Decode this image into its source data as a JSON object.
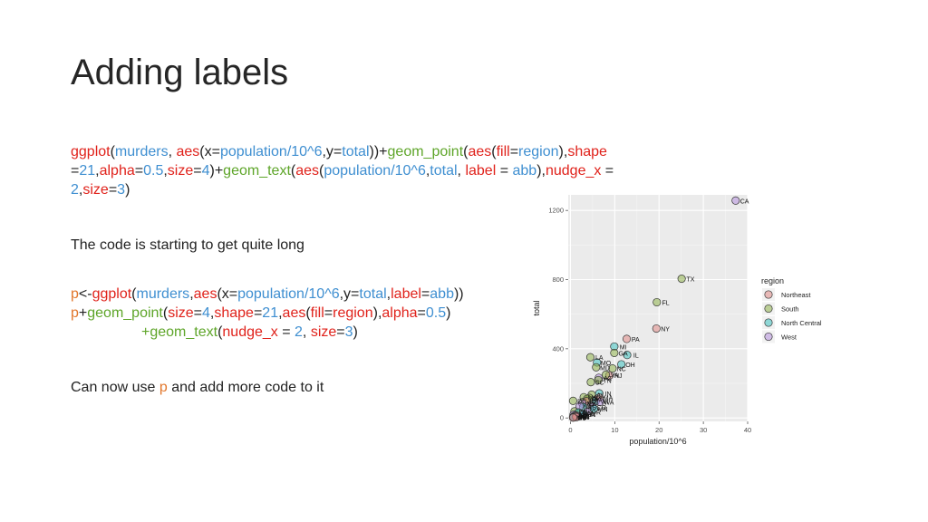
{
  "title": "Adding labels",
  "code_block1": {
    "line1": [
      "ggplot",
      "(",
      "murders",
      ", ",
      "aes",
      "(x=",
      "population/10^6",
      ",y=",
      "total",
      "))+",
      "geom_point",
      "(",
      "aes",
      "(",
      "fill",
      "=",
      "region",
      "),",
      "shape"
    ],
    "line2": [
      "=",
      "21",
      ",",
      "alpha",
      "=",
      "0.5",
      ",",
      "size",
      "=",
      "4",
      ")+",
      "geom_text",
      "(",
      "aes",
      "(",
      "population/10^6",
      ",",
      "total",
      ", ",
      "label",
      " = ",
      "abb",
      "),",
      "nudge_x",
      " ="
    ],
    "line3": [
      "2",
      ",",
      "size",
      "=",
      "3",
      ")"
    ]
  },
  "note1": "The code is starting to get quite long",
  "code_block2": {
    "line1": [
      "p",
      "<-",
      "ggplot",
      "(",
      "murders",
      ",",
      "aes",
      "(x=",
      "population/10^6",
      ",y=",
      "total",
      ",",
      "label",
      "=",
      "abb",
      "))"
    ],
    "line2": [
      "p",
      "+",
      "geom_point",
      "(",
      "size",
      "=",
      "4",
      ",",
      "shape",
      "=",
      "21",
      ",",
      "aes",
      "(",
      "fill",
      "=",
      "region",
      "),",
      "alpha",
      "=",
      "0.5",
      ")"
    ],
    "line3": [
      "+",
      "geom_text",
      "(",
      "nudge_x",
      " = ",
      "2",
      ", ",
      "size",
      "=",
      "3",
      ")"
    ]
  },
  "note2": {
    "before": "Can now use ",
    "highlight": "p",
    "after": " and add more code to it"
  },
  "chart_data": {
    "type": "scatter",
    "xlabel": "population/10^6",
    "ylabel": "total",
    "xlim": [
      -0.5,
      40
    ],
    "ylim": [
      -20,
      1290
    ],
    "xticks": [
      0,
      10,
      20,
      30,
      40
    ],
    "yticks": [
      0,
      400,
      800,
      1200
    ],
    "grid": true,
    "legend_title": "region",
    "legend_position": "right",
    "legend": [
      {
        "name": "Northeast",
        "color": "#e08b87"
      },
      {
        "name": "South",
        "color": "#8fb34d"
      },
      {
        "name": "North Central",
        "color": "#3ec1bf"
      },
      {
        "name": "West",
        "color": "#b58fdc"
      }
    ],
    "points": [
      {
        "label": "CA",
        "x": 37.3,
        "y": 1257,
        "region": "West"
      },
      {
        "label": "TX",
        "x": 25.1,
        "y": 805,
        "region": "South"
      },
      {
        "label": "FL",
        "x": 19.5,
        "y": 669,
        "region": "South"
      },
      {
        "label": "NY",
        "x": 19.4,
        "y": 517,
        "region": "Northeast"
      },
      {
        "label": "PA",
        "x": 12.7,
        "y": 457,
        "region": "Northeast"
      },
      {
        "label": "MI",
        "x": 9.9,
        "y": 413,
        "region": "North Central"
      },
      {
        "label": "GA",
        "x": 9.9,
        "y": 376,
        "region": "South"
      },
      {
        "label": "IL",
        "x": 12.8,
        "y": 364,
        "region": "North Central"
      },
      {
        "label": "LA",
        "x": 4.5,
        "y": 351,
        "region": "South"
      },
      {
        "label": "OH",
        "x": 11.5,
        "y": 310,
        "region": "North Central"
      },
      {
        "label": "MO",
        "x": 6.0,
        "y": 321,
        "region": "North Central"
      },
      {
        "label": "MD",
        "x": 5.8,
        "y": 293,
        "region": "South"
      },
      {
        "label": "NC",
        "x": 9.5,
        "y": 286,
        "region": "South"
      },
      {
        "label": "NJ",
        "x": 8.8,
        "y": 246,
        "region": "Northeast"
      },
      {
        "label": "VA",
        "x": 8.0,
        "y": 250,
        "region": "South"
      },
      {
        "label": "AZ",
        "x": 6.4,
        "y": 232,
        "region": "West"
      },
      {
        "label": "TN",
        "x": 6.3,
        "y": 219,
        "region": "South"
      },
      {
        "label": "SC",
        "x": 4.6,
        "y": 207,
        "region": "South"
      },
      {
        "label": "IN",
        "x": 6.5,
        "y": 142,
        "region": "North Central"
      },
      {
        "label": "AL",
        "x": 4.8,
        "y": 135,
        "region": "South"
      },
      {
        "label": "MS",
        "x": 3.0,
        "y": 120,
        "region": "South"
      },
      {
        "label": "WI",
        "x": 5.7,
        "y": 97,
        "region": "North Central"
      },
      {
        "label": "MA",
        "x": 6.5,
        "y": 118,
        "region": "Northeast"
      },
      {
        "label": "KY",
        "x": 4.3,
        "y": 116,
        "region": "South"
      },
      {
        "label": "CO",
        "x": 5.0,
        "y": 65,
        "region": "West"
      },
      {
        "label": "WA",
        "x": 6.7,
        "y": 93,
        "region": "West"
      },
      {
        "label": "AR",
        "x": 2.9,
        "y": 93,
        "region": "South"
      },
      {
        "label": "OK",
        "x": 3.8,
        "y": 111,
        "region": "South"
      },
      {
        "label": "CT",
        "x": 3.6,
        "y": 97,
        "region": "Northeast"
      },
      {
        "label": "NV",
        "x": 2.7,
        "y": 84,
        "region": "West"
      },
      {
        "label": "DC",
        "x": 0.6,
        "y": 99,
        "region": "South"
      },
      {
        "label": "KS",
        "x": 2.9,
        "y": 63,
        "region": "North Central"
      },
      {
        "label": "MN",
        "x": 5.3,
        "y": 53,
        "region": "North Central"
      },
      {
        "label": "NM",
        "x": 2.1,
        "y": 67,
        "region": "West"
      },
      {
        "label": "OR",
        "x": 3.8,
        "y": 36,
        "region": "West"
      },
      {
        "label": "DE",
        "x": 0.9,
        "y": 38,
        "region": "South"
      },
      {
        "label": "WV",
        "x": 1.9,
        "y": 27,
        "region": "South"
      },
      {
        "label": "NE",
        "x": 1.8,
        "y": 32,
        "region": "North Central"
      },
      {
        "label": "UT",
        "x": 2.8,
        "y": 22,
        "region": "West"
      },
      {
        "label": "IA",
        "x": 3.0,
        "y": 21,
        "region": "North Central"
      },
      {
        "label": "RI",
        "x": 1.1,
        "y": 16,
        "region": "Northeast"
      },
      {
        "label": "AK",
        "x": 0.7,
        "y": 19,
        "region": "West"
      },
      {
        "label": "MT",
        "x": 1.0,
        "y": 12,
        "region": "West"
      },
      {
        "label": "SD",
        "x": 0.8,
        "y": 8,
        "region": "North Central"
      },
      {
        "label": "ID",
        "x": 1.6,
        "y": 12,
        "region": "West"
      },
      {
        "label": "HI",
        "x": 1.4,
        "y": 7,
        "region": "West"
      },
      {
        "label": "WY",
        "x": 0.6,
        "y": 5,
        "region": "West"
      },
      {
        "label": "ND",
        "x": 0.7,
        "y": 4,
        "region": "North Central"
      },
      {
        "label": "ME",
        "x": 1.3,
        "y": 11,
        "region": "Northeast"
      },
      {
        "label": "NH",
        "x": 1.3,
        "y": 5,
        "region": "Northeast"
      },
      {
        "label": "VT",
        "x": 0.6,
        "y": 2,
        "region": "Northeast"
      }
    ]
  }
}
